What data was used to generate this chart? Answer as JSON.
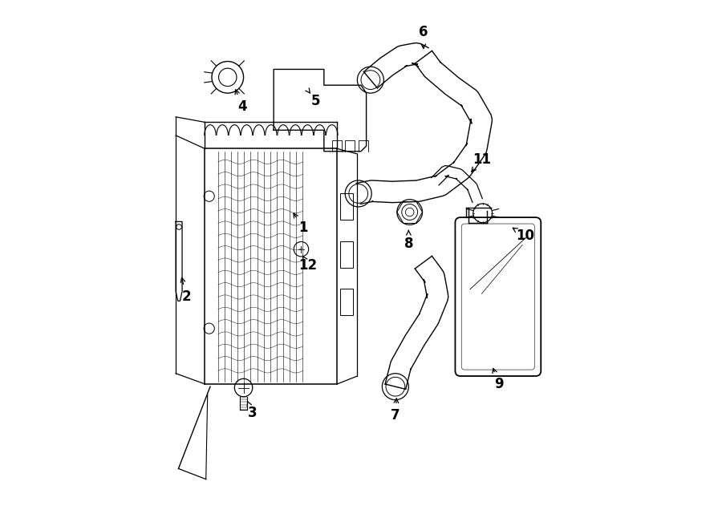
{
  "background_color": "#ffffff",
  "line_color": "#000000",
  "fig_width": 9.0,
  "fig_height": 6.61,
  "dpi": 100,
  "label_data": {
    "1": [
      0.39,
      0.57,
      0.365,
      0.61
    ],
    "2": [
      0.17,
      0.44,
      0.158,
      0.49
    ],
    "3": [
      0.295,
      0.22,
      0.28,
      0.255
    ],
    "4": [
      0.275,
      0.8,
      0.258,
      0.845
    ],
    "5": [
      0.415,
      0.81,
      0.4,
      0.83
    ],
    "6": [
      0.618,
      0.94,
      0.618,
      0.895
    ],
    "7": [
      0.565,
      0.215,
      0.568,
      0.262
    ],
    "8": [
      0.59,
      0.54,
      0.59,
      0.575
    ],
    "9": [
      0.76,
      0.275,
      0.745,
      0.318
    ],
    "10": [
      0.81,
      0.555,
      0.775,
      0.578
    ],
    "11": [
      0.728,
      0.7,
      0.7,
      0.665
    ],
    "12": [
      0.4,
      0.5,
      0.385,
      0.525
    ]
  }
}
